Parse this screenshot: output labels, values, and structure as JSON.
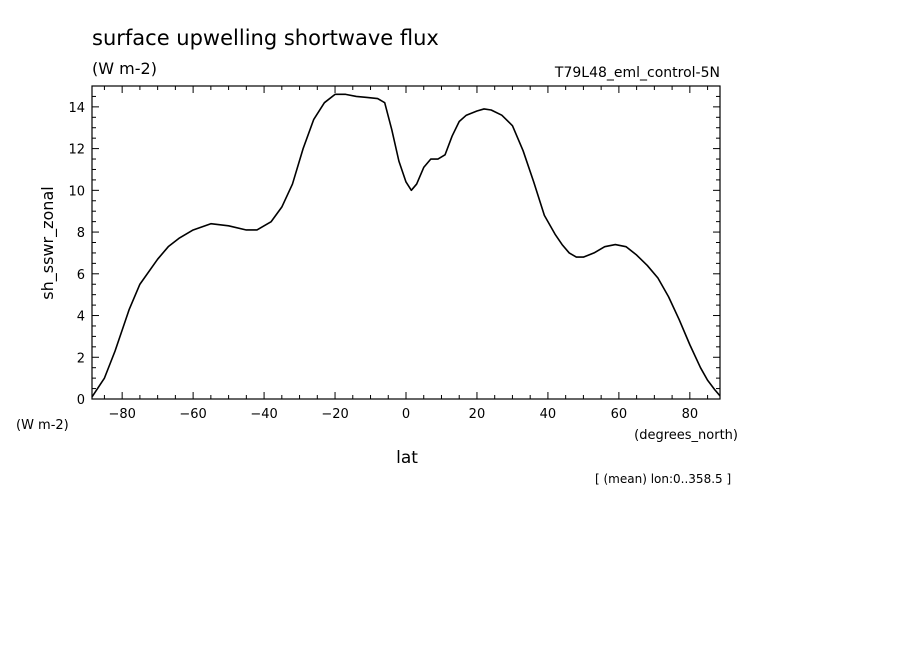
{
  "chart_data": {
    "type": "line",
    "title": "surface upwelling shortwave flux",
    "units_label": "(W m-2)",
    "dataset_label": "T79L48_eml_control-5N",
    "ylabel": "sh_sswr_zonal",
    "y_units": "(W m-2)",
    "xlabel": "lat",
    "x_units": "(degrees_north)",
    "footer": "[ (mean) lon:0..358.5 ]",
    "xlim": [
      -88.5,
      88.5
    ],
    "ylim": [
      0,
      15
    ],
    "x_ticks": [
      -80,
      -60,
      -40,
      -20,
      0,
      20,
      40,
      60,
      80
    ],
    "y_ticks": [
      0,
      2,
      4,
      6,
      8,
      10,
      12,
      14
    ],
    "grid": false,
    "series": [
      {
        "x": [
          -88.5,
          -85,
          -82,
          -78,
          -75,
          -70,
          -67,
          -64,
          -60,
          -55,
          -50,
          -45,
          -42,
          -38,
          -35,
          -32,
          -29,
          -26,
          -23,
          -20,
          -17,
          -14,
          -11,
          -8,
          -6,
          -4,
          -2,
          0,
          1.5,
          3,
          5,
          7,
          9,
          11,
          13,
          15,
          17,
          20,
          22,
          24,
          27,
          30,
          33,
          36,
          39,
          42,
          44,
          46,
          48,
          50,
          53,
          56,
          59,
          62,
          65,
          68,
          71,
          74,
          77,
          80,
          83,
          85,
          87,
          88.5
        ],
        "y": [
          0.1,
          1.0,
          2.3,
          4.3,
          5.5,
          6.7,
          7.3,
          7.7,
          8.1,
          8.4,
          8.3,
          8.1,
          8.1,
          8.5,
          9.2,
          10.3,
          12.0,
          13.4,
          14.2,
          14.6,
          14.6,
          14.5,
          14.45,
          14.4,
          14.2,
          12.9,
          11.4,
          10.4,
          10.0,
          10.3,
          11.1,
          11.5,
          11.5,
          11.7,
          12.6,
          13.3,
          13.6,
          13.8,
          13.9,
          13.85,
          13.6,
          13.1,
          11.9,
          10.4,
          8.8,
          7.9,
          7.4,
          7.0,
          6.8,
          6.8,
          7.0,
          7.3,
          7.4,
          7.3,
          6.9,
          6.4,
          5.8,
          4.9,
          3.8,
          2.6,
          1.5,
          0.9,
          0.45,
          0.15
        ]
      }
    ]
  }
}
